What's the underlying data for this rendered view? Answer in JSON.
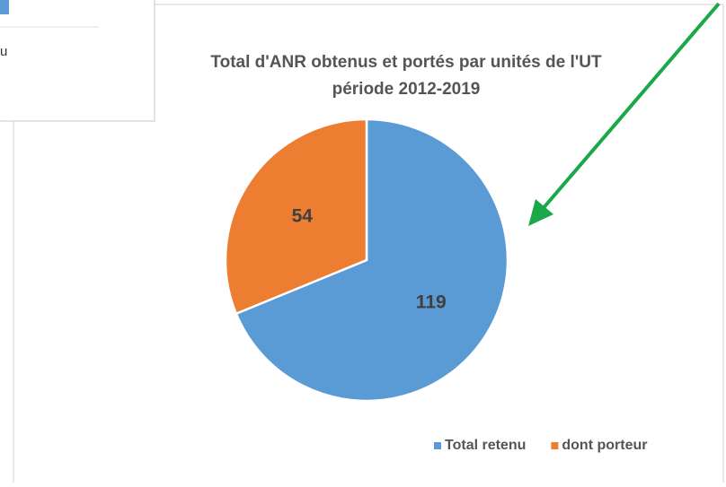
{
  "chart_data": {
    "type": "pie",
    "title": [
      "Total d'ANR obtenus et portés par unités de l'UT",
      "période 2012-2019"
    ],
    "categories": [
      "Total retenu",
      "dont porteur"
    ],
    "values": [
      119,
      54
    ],
    "colors": [
      "#5b9bd5",
      "#ed7d31"
    ],
    "legend": "bottom-right"
  },
  "overlay": {
    "text": "u"
  }
}
